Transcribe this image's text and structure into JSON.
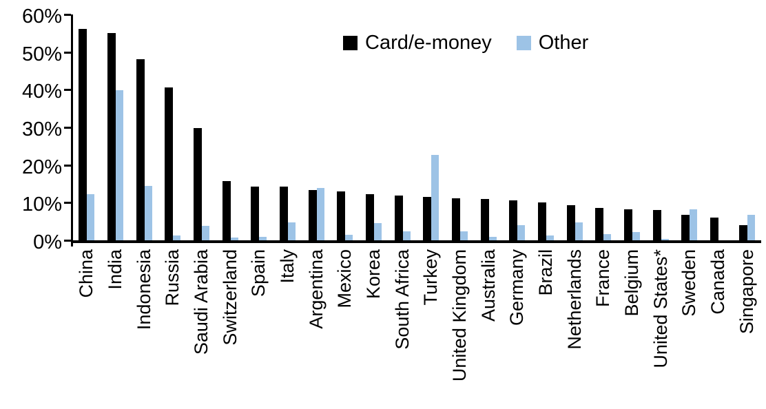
{
  "chart_data": {
    "type": "bar",
    "title": "",
    "xlabel": "",
    "ylabel": "",
    "value_unit": "%",
    "ylim": [
      0,
      60
    ],
    "ytick_step": 10,
    "ytick_labels": [
      "0%",
      "10%",
      "20%",
      "30%",
      "40%",
      "50%",
      "60%"
    ],
    "grid": false,
    "legend_position": "top-center",
    "categories": [
      "China",
      "India",
      "Indonesia",
      "Russia",
      "Saudi Arabia",
      "Switzerland",
      "Spain",
      "Italy",
      "Argentina",
      "Mexico",
      "Korea",
      "South Africa",
      "Turkey",
      "United Kingdom",
      "Australia",
      "Germany",
      "Brazil",
      "Netherlands",
      "France",
      "Belgium",
      "United States*",
      "Sweden",
      "Canada",
      "Singapore"
    ],
    "series": [
      {
        "name": "Card/e-money",
        "color": "#000000",
        "values": [
          56.2,
          55.0,
          48.2,
          40.6,
          29.9,
          15.7,
          14.3,
          14.2,
          13.4,
          13.0,
          12.3,
          11.8,
          11.6,
          11.2,
          10.9,
          10.7,
          10.0,
          9.3,
          8.6,
          8.2,
          8.0,
          6.7,
          6.1,
          4.0
        ]
      },
      {
        "name": "Other",
        "color": "#9DC3E6",
        "values": [
          12.3,
          39.8,
          14.5,
          1.2,
          3.9,
          0.8,
          1.0,
          4.7,
          13.9,
          1.4,
          4.6,
          2.4,
          22.7,
          2.4,
          1.0,
          4.0,
          1.3,
          4.8,
          1.6,
          2.2,
          0.3,
          8.3,
          0,
          6.8
        ]
      }
    ]
  }
}
